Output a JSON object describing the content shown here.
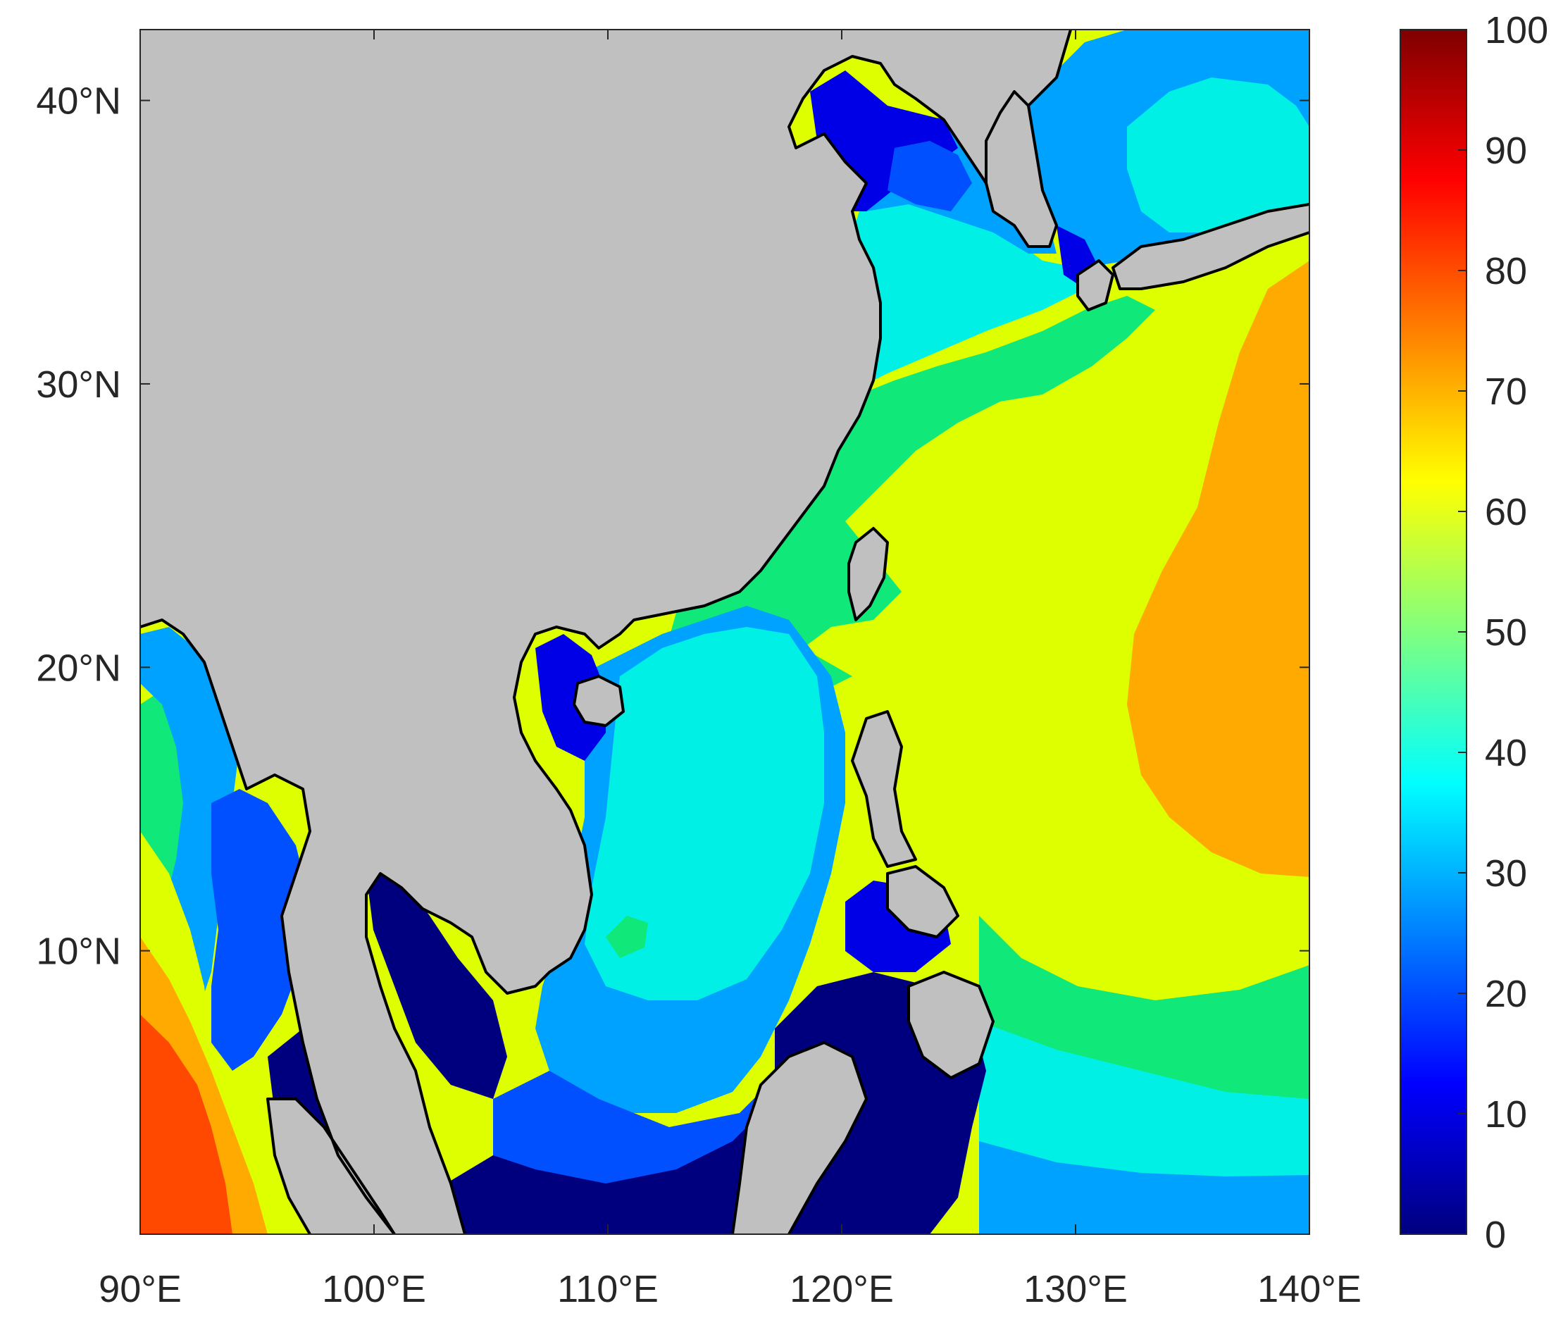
{
  "map": {
    "lon_range": [
      90,
      140
    ],
    "lat_range": [
      0,
      42.5
    ],
    "x_ticks": [
      {
        "value": 90,
        "label": "90°E"
      },
      {
        "value": 100,
        "label": "100°E"
      },
      {
        "value": 110,
        "label": "110°E"
      },
      {
        "value": 120,
        "label": "120°E"
      },
      {
        "value": 130,
        "label": "130°E"
      },
      {
        "value": 140,
        "label": "140°E"
      }
    ],
    "y_ticks": [
      {
        "value": 10,
        "label": "10°N"
      },
      {
        "value": 20,
        "label": "20°N"
      },
      {
        "value": 30,
        "label": "30°N"
      },
      {
        "value": 40,
        "label": "40°N"
      }
    ],
    "land_color": "#c0c0c0",
    "coastline_color": "#000000"
  },
  "colorbar": {
    "min": 0,
    "max": 100,
    "colormap": "jet",
    "ticks": [
      {
        "value": 0,
        "label": "0"
      },
      {
        "value": 10,
        "label": "10"
      },
      {
        "value": 20,
        "label": "20"
      },
      {
        "value": 30,
        "label": "30"
      },
      {
        "value": 40,
        "label": "40"
      },
      {
        "value": 50,
        "label": "50"
      },
      {
        "value": 60,
        "label": "60"
      },
      {
        "value": 70,
        "label": "70"
      },
      {
        "value": 80,
        "label": "80"
      },
      {
        "value": 90,
        "label": "90"
      },
      {
        "value": 100,
        "label": "100"
      }
    ]
  },
  "level_colors": {
    "l0": "#00007f",
    "l1": "#0000e6",
    "l2": "#0050ff",
    "l3": "#00a2ff",
    "l4": "#00f0e6",
    "l5": "#10e87a",
    "l6": "#ddff00",
    "l7": "#ffaa00",
    "l8": "#ff4800"
  }
}
